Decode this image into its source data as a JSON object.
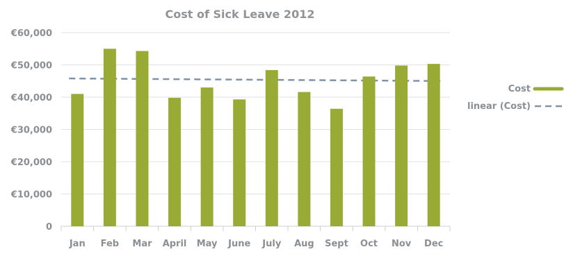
{
  "chart_data": {
    "type": "bar",
    "title": "Cost of Sick Leave 2012",
    "categories": [
      "Jan",
      "Feb",
      "Mar",
      "April",
      "May",
      "June",
      "July",
      "Aug",
      "Sept",
      "Oct",
      "Nov",
      "Dec"
    ],
    "series": [
      {
        "name": "Cost",
        "values": [
          41000,
          55000,
          54300,
          39800,
          43000,
          39300,
          48400,
          41600,
          36400,
          46400,
          49800,
          50300
        ],
        "color": "#9aab35"
      }
    ],
    "trendline": {
      "name": "linear (Cost)",
      "type": "linear",
      "start": 45800,
      "end": 45000,
      "color": "#7f93a8",
      "style": "dashed"
    },
    "yticks": [
      {
        "value": 0,
        "label": "0"
      },
      {
        "value": 10000,
        "label": "€10,000"
      },
      {
        "value": 20000,
        "label": "€20,000"
      },
      {
        "value": 30000,
        "label": "€30,000"
      },
      {
        "value": 40000,
        "label": "€40,000"
      },
      {
        "value": 50000,
        "label": "€50,000"
      },
      {
        "value": 60000,
        "label": "€60,000"
      }
    ],
    "ylim": [
      0,
      60000
    ],
    "grid": true,
    "legend_position": "right",
    "colors": {
      "title": "#8f9499",
      "label": "#8a8f94",
      "grid": "#e1e1e1",
      "axis": "#cfcfcf"
    }
  }
}
